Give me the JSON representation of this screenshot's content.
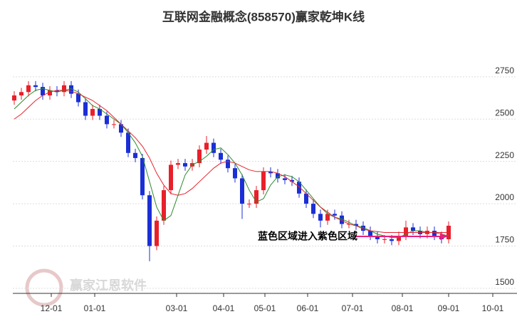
{
  "chart_data": {
    "type": "candlestick",
    "title": "互联网金融概念(858570)赢家乾坤K线",
    "watermark": "赢家江恩软件",
    "annotation": "蓝色区域进入紫色区域",
    "up_color": "#e8202a",
    "down_color": "#1a2fd6",
    "open": [
      2610,
      2640,
      2660,
      2700,
      2690,
      2640,
      2670,
      2660,
      2700,
      2650,
      2600,
      2520,
      2560,
      2520,
      2470,
      2470,
      2420,
      2300,
      2270,
      2050,
      1750,
      1900,
      2080,
      2230,
      2240,
      2220,
      2240,
      2320,
      2360,
      2300,
      2260,
      2210,
      2150,
      2000,
      2000,
      2080,
      2190,
      2180,
      2150,
      2140,
      2130,
      2060,
      2000,
      1940,
      1900,
      1940,
      1930,
      1880,
      1880,
      1870,
      1840,
      1810,
      1790,
      1790,
      1780,
      1810,
      1860,
      1840,
      1820,
      1840,
      1810,
      1790
    ],
    "high": [
      2665,
      2685,
      2725,
      2725,
      2715,
      2695,
      2695,
      2725,
      2725,
      2675,
      2625,
      2585,
      2585,
      2545,
      2495,
      2495,
      2445,
      2325,
      2295,
      2075,
      1925,
      2105,
      2255,
      2265,
      2265,
      2265,
      2345,
      2400,
      2385,
      2325,
      2285,
      2235,
      2175,
      2025,
      2105,
      2215,
      2215,
      2205,
      2175,
      2165,
      2155,
      2085,
      2025,
      1965,
      1965,
      1965,
      1955,
      1905,
      1905,
      1895,
      1865,
      1835,
      1815,
      1815,
      1835,
      1900,
      1885,
      1865,
      1865,
      1865,
      1835,
      1895
    ],
    "low": [
      2585,
      2615,
      2635,
      2665,
      2615,
      2615,
      2635,
      2635,
      2625,
      2575,
      2495,
      2495,
      2495,
      2445,
      2445,
      2395,
      2275,
      2245,
      2025,
      1660,
      1725,
      1875,
      2055,
      2205,
      2195,
      2195,
      2215,
      2295,
      2275,
      2235,
      2185,
      2125,
      1910,
      1975,
      1975,
      2055,
      2155,
      2125,
      2115,
      2105,
      2035,
      1975,
      1915,
      1860,
      1875,
      1905,
      1855,
      1855,
      1845,
      1815,
      1785,
      1765,
      1765,
      1755,
      1755,
      1785,
      1815,
      1795,
      1795,
      1785,
      1765,
      1765
    ],
    "close": [
      2640,
      2660,
      2700,
      2690,
      2640,
      2670,
      2660,
      2700,
      2650,
      2600,
      2520,
      2560,
      2520,
      2470,
      2470,
      2420,
      2300,
      2270,
      2050,
      1750,
      1900,
      2080,
      2230,
      2240,
      2220,
      2240,
      2320,
      2360,
      2300,
      2260,
      2210,
      2150,
      2000,
      2000,
      2080,
      2190,
      2180,
      2150,
      2140,
      2130,
      2060,
      2000,
      1940,
      1900,
      1940,
      1930,
      1880,
      1880,
      1870,
      1840,
      1810,
      1790,
      1790,
      1780,
      1810,
      1860,
      1840,
      1820,
      1840,
      1810,
      1790,
      1870
    ],
    "lines": [
      {
        "color": "#2e8b2e",
        "values": [
          2560,
          2600,
          2640,
          2670,
          2680,
          2670,
          2660,
          2670,
          2680,
          2660,
          2620,
          2580,
          2560,
          2530,
          2500,
          2470,
          2420,
          2360,
          2280,
          2130,
          1980,
          1900,
          1930,
          2050,
          2170,
          2230,
          2250,
          2280,
          2320,
          2330,
          2290,
          2240,
          2170,
          2080,
          2010,
          2030,
          2110,
          2160,
          2170,
          2160,
          2130,
          2080,
          2030,
          1980,
          1940,
          1920,
          1910,
          1890,
          1870,
          1860,
          1840,
          1820,
          1810,
          1800,
          1800,
          1820,
          1840,
          1840,
          1830,
          1830,
          1820,
          1810
        ]
      },
      {
        "color": "#e8202a",
        "values": [
          2500,
          2530,
          2570,
          2610,
          2640,
          2660,
          2670,
          2670,
          2665,
          2650,
          2630,
          2610,
          2580,
          2550,
          2510,
          2470,
          2430,
          2390,
          2340,
          2270,
          2180,
          2110,
          2060,
          2050,
          2060,
          2090,
          2130,
          2170,
          2210,
          2240,
          2250,
          2240,
          2220,
          2200,
          2190,
          2190,
          2190,
          2180,
          2160,
          2130,
          2100,
          2060,
          2020,
          1980,
          1950,
          1920,
          1900,
          1880,
          1870,
          1850,
          1840,
          1835,
          1830,
          1830,
          1830,
          1830,
          1830,
          1830,
          1830,
          1830,
          1830,
          1830
        ]
      }
    ],
    "xlim": [
      -0.2,
      67.5
    ],
    "xticks": [
      {
        "value": 5.2,
        "label": "12-01"
      },
      {
        "value": 11.3,
        "label": "01-01"
      },
      {
        "value": 22.8,
        "label": "03-01"
      },
      {
        "value": 29.4,
        "label": "04-01"
      },
      {
        "value": 35.2,
        "label": "05-01"
      },
      {
        "value": 41.2,
        "label": "06-01"
      },
      {
        "value": 47.5,
        "label": "07-01"
      },
      {
        "value": 54.5,
        "label": "08-01"
      },
      {
        "value": 61,
        "label": "09-01"
      },
      {
        "value": 67.2,
        "label": "10-01"
      }
    ],
    "ylim": [
      1470,
      2800
    ],
    "yticks": [
      1500,
      1750,
      2000,
      2250,
      2500,
      2750
    ],
    "grid": true
  }
}
